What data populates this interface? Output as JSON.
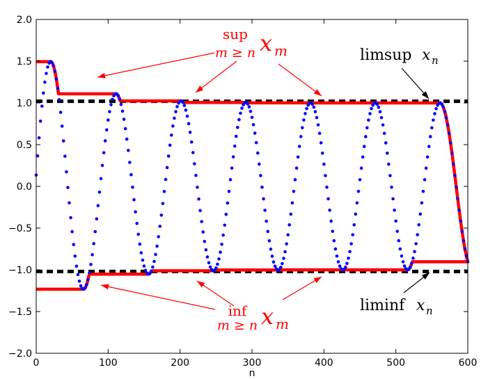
{
  "chart_data": {
    "type": "scatter",
    "xlabel": "n",
    "xlim": [
      0,
      600
    ],
    "ylim": [
      -2.0,
      2.0
    ],
    "x_ticks": [
      "0",
      "100",
      "200",
      "300",
      "400",
      "500",
      "600"
    ],
    "y_ticks": [
      "2.0",
      "1.5",
      "1.0",
      "0.5",
      "0.0",
      "−0.5",
      "−1.0",
      "−1.5",
      "−2.0"
    ],
    "x_tick_values": [
      0,
      100,
      200,
      300,
      400,
      500,
      600
    ],
    "y_tick_values": [
      2.0,
      1.5,
      1.0,
      0.5,
      0.0,
      -0.5,
      -1.0,
      -1.5,
      -2.0
    ],
    "grid": false,
    "series": [
      {
        "kind": "points",
        "color": "#0000ff",
        "formula": "x_n = (1 + 0.7*exp(-n/60)) * sin(2*pi*n/90 + 0.08)",
        "n_range": [
          0,
          600
        ],
        "n_step": 2
      },
      {
        "kind": "step-line",
        "color": "#ff0000",
        "meaning": "sup over m >= n of x_m"
      },
      {
        "kind": "step-line",
        "color": "#ff0000",
        "meaning": "inf over m >= n of x_m"
      },
      {
        "kind": "dashed-line",
        "color": "#000000",
        "y": 1.02
      },
      {
        "kind": "dashed-line",
        "color": "#000000",
        "y": -1.02
      }
    ],
    "annotations": {
      "sup_op": "sup",
      "sup_sub": "m ≥ n",
      "sup_var": "x",
      "sup_var_sub": "m",
      "inf_op": "inf",
      "inf_sub": "m ≥ n",
      "inf_var": "x",
      "inf_var_sub": "m",
      "limsup_op": "limsup",
      "limsup_var": "x",
      "limsup_var_sub": "n",
      "liminf_op": "liminf",
      "liminf_var": "x",
      "liminf_var_sub": "n"
    }
  }
}
